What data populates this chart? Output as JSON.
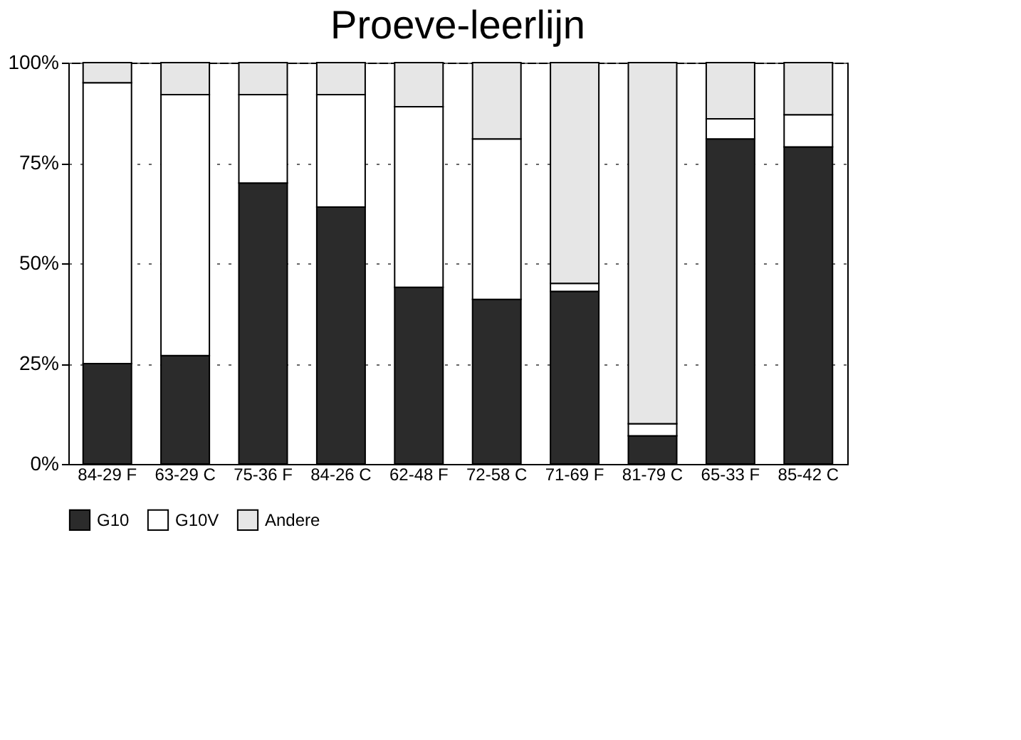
{
  "chart_data": {
    "type": "bar",
    "title": "Proeve-leerlijn",
    "stacked": true,
    "categories": [
      "84-29 F",
      "63-29 C",
      "75-36 F",
      "84-26 C",
      "62-48 F",
      "72-58 C",
      "71-69 F",
      "81-79 C",
      "65-33 F",
      "85-42 C"
    ],
    "series": [
      {
        "name": "G10",
        "color": "#2b2b2b",
        "values": [
          25,
          27,
          70,
          64,
          44,
          41,
          43,
          7,
          81,
          79
        ]
      },
      {
        "name": "G10V",
        "color": "#ffffff",
        "values": [
          70,
          65,
          22,
          28,
          45,
          40,
          2,
          3,
          5,
          8
        ]
      },
      {
        "name": "Andere",
        "color": "#e6e6e6",
        "values": [
          5,
          8,
          8,
          8,
          11,
          19,
          55,
          90,
          14,
          13
        ]
      }
    ],
    "ylim": [
      0,
      100
    ],
    "yticks": [
      {
        "value": 0,
        "label": "0%"
      },
      {
        "value": 25,
        "label": "25%"
      },
      {
        "value": 50,
        "label": "50%"
      },
      {
        "value": 75,
        "label": "75%"
      },
      {
        "value": 100,
        "label": "100%"
      }
    ],
    "grid": "y",
    "legend": "bottom"
  }
}
